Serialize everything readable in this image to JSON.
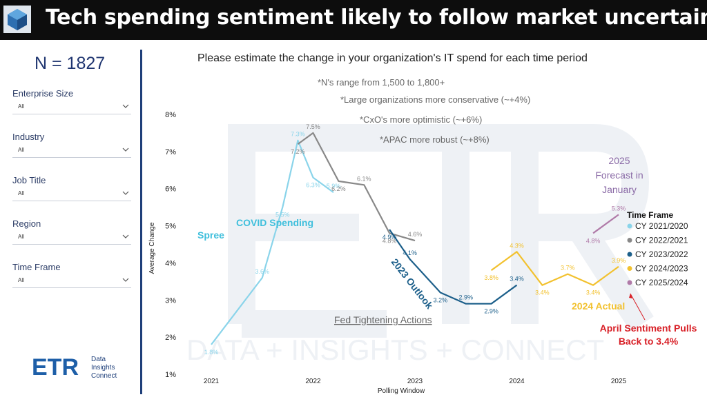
{
  "header": {
    "title": "Tech spending sentiment likely to follow market uncertainty",
    "logo_icon": "etr-cube-logo-icon"
  },
  "sidebar": {
    "n_label": "N = 1827",
    "filters": [
      {
        "label": "Enterprise Size",
        "value": "All"
      },
      {
        "label": "Industry",
        "value": "All"
      },
      {
        "label": "Job Title",
        "value": "All"
      },
      {
        "label": "Region",
        "value": "All"
      },
      {
        "label": "Time Frame",
        "value": "All"
      }
    ],
    "brand": {
      "logo_text": "ETR",
      "line1": "Data",
      "line2": "Insights",
      "line3": "Connect"
    }
  },
  "chart_data": {
    "type": "line",
    "title": "Please estimate the change in your organization's IT spend for each time period",
    "xlabel": "Polling Window",
    "ylabel": "Average Change",
    "x_ticks": [
      "2021",
      "2022",
      "2023",
      "2024",
      "2025"
    ],
    "y_ticks": [
      "1%",
      "2%",
      "3%",
      "4%",
      "5%",
      "6%",
      "7%",
      "8%"
    ],
    "ylim": [
      1,
      8
    ],
    "grid": false,
    "legend": {
      "title": "Time Frame",
      "position": "right"
    },
    "series": [
      {
        "name": "CY 2021/2020",
        "color": "#8ad4ea",
        "points": [
          [
            2021.0,
            1.8
          ],
          [
            2021.5,
            3.6
          ],
          [
            2021.7,
            5.5
          ],
          [
            2021.85,
            7.3
          ],
          [
            2022.0,
            6.3
          ],
          [
            2022.2,
            5.9
          ]
        ],
        "labels": [
          "1.8%",
          "3.6%",
          "5.5%",
          "7.3%",
          "6.3%",
          "5.9%"
        ]
      },
      {
        "name": "CY 2022/2021",
        "color": "#888888",
        "points": [
          [
            2021.85,
            7.2
          ],
          [
            2022.0,
            7.5
          ],
          [
            2022.25,
            6.2
          ],
          [
            2022.5,
            6.1
          ],
          [
            2022.75,
            4.8
          ],
          [
            2023.0,
            4.6
          ]
        ],
        "labels": [
          "7.2%",
          "7.5%",
          "6.2%",
          "6.1%",
          "4.8%",
          "4.6%"
        ]
      },
      {
        "name": "CY 2023/2022",
        "color": "#1c5f8a",
        "points": [
          [
            2022.75,
            4.9
          ],
          [
            2022.95,
            4.1
          ],
          [
            2023.25,
            3.2
          ],
          [
            2023.5,
            2.9
          ],
          [
            2023.75,
            2.9
          ],
          [
            2024.0,
            3.4
          ]
        ],
        "labels": [
          "4.9%",
          "4.1%",
          "3.2%",
          "2.9%",
          "2.9%",
          "3.4%"
        ]
      },
      {
        "name": "CY 2024/2023",
        "color": "#f2c12e",
        "points": [
          [
            2023.75,
            3.8
          ],
          [
            2024.0,
            4.3
          ],
          [
            2024.25,
            3.4
          ],
          [
            2024.5,
            3.7
          ],
          [
            2024.75,
            3.4
          ],
          [
            2025.0,
            3.9
          ]
        ],
        "labels": [
          "3.8%",
          "4.3%",
          "3.4%",
          "3.7%",
          "3.4%",
          "3.9%"
        ]
      },
      {
        "name": "CY 2025/2024",
        "color": "#b07aa8",
        "points": [
          [
            2024.75,
            4.8
          ],
          [
            2025.0,
            5.3
          ]
        ],
        "labels": [
          "4.8%",
          "5.3%"
        ]
      }
    ],
    "annotations": {
      "notes": [
        "*N's range from 1,500 to 1,800+",
        "*Large organizations more conservative (~+4%)",
        "*CxO's more optimistic (~+6%)",
        "*APAC more robust (~+8%)"
      ],
      "covid_line1": "COVID Spending",
      "covid_line2": "Spree",
      "outlook": "2023 Outlook",
      "fed": "Fed Tightening Actions",
      "actual": "2024 Actual",
      "forecast_line1": "2025",
      "forecast_line2": "Forecast in",
      "forecast_line3": "January",
      "april_line1": "April Sentiment Pulls",
      "april_line2": "Back to 3.4%"
    },
    "watermark": "DATA + INSIGHTS + CONNECT"
  }
}
